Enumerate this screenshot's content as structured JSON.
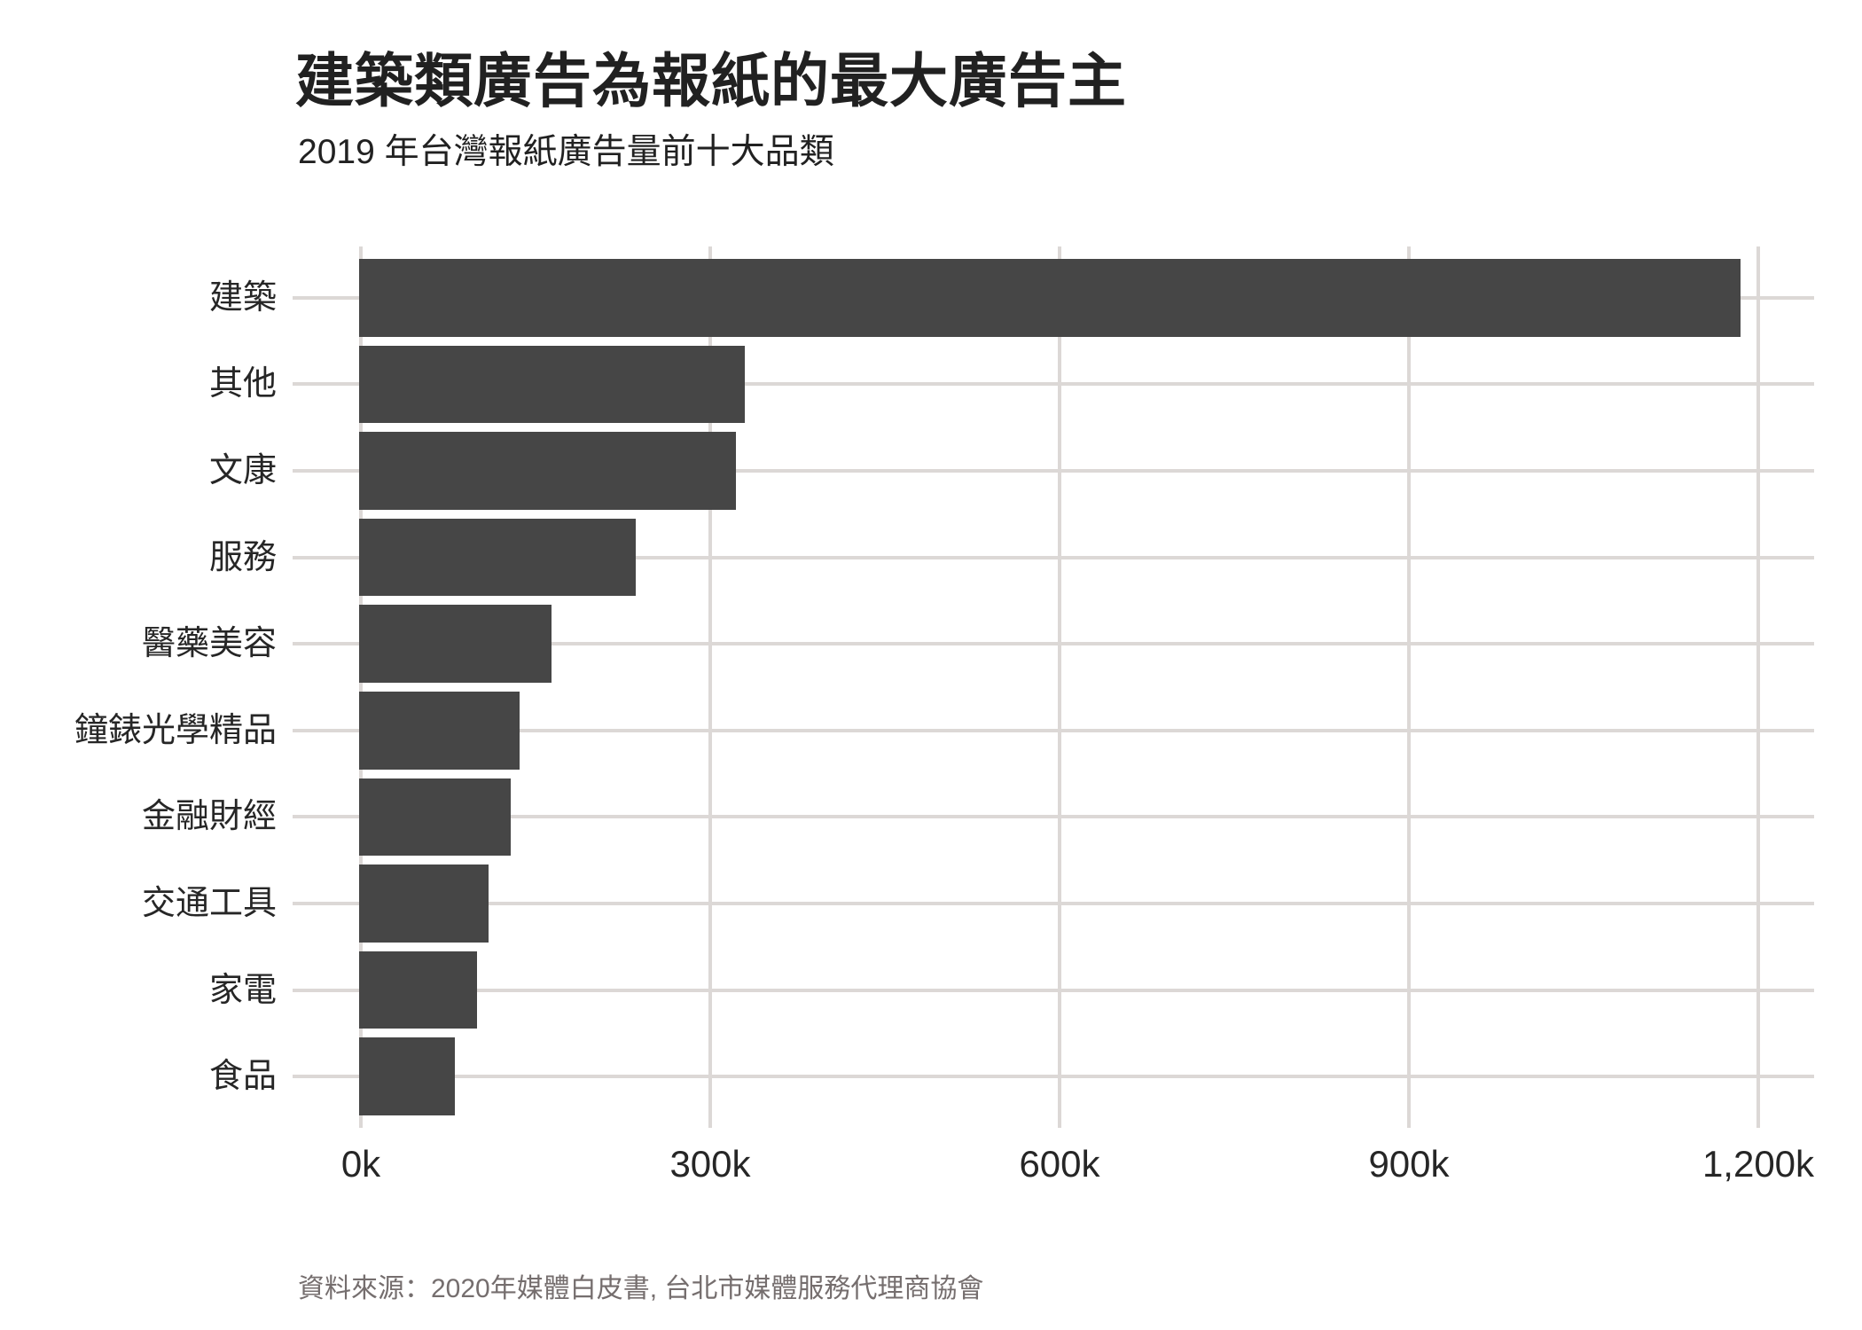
{
  "header": {
    "title": "建築類廣告為報紙的最大廣告主",
    "subtitle": "2019 年台灣報紙廣告量前十大品類"
  },
  "chart_data": {
    "type": "bar",
    "orientation": "horizontal",
    "title": "建築類廣告為報紙的最大廣告主",
    "subtitle": "2019 年台灣報紙廣告量前十大品類",
    "categories": [
      "建築",
      "其他",
      "文康",
      "服務",
      "醫藥美容",
      "鐘錶光學精品",
      "金融財經",
      "交通工具",
      "家電",
      "食品"
    ],
    "values": [
      1185000,
      330000,
      322000,
      236000,
      164000,
      136000,
      129000,
      110000,
      100000,
      81000
    ],
    "xlim": [
      0,
      1200000
    ],
    "x_ticks": [
      {
        "value": 0,
        "label": "0k"
      },
      {
        "value": 300000,
        "label": "300k"
      },
      {
        "value": 600000,
        "label": "600k"
      },
      {
        "value": 900000,
        "label": "900k"
      },
      {
        "value": 1200000,
        "label": "1,200k"
      }
    ],
    "grid": true,
    "legend": "none",
    "bar_color": "#464646",
    "grid_color": "#DCD8D6",
    "text_color": "#262626"
  },
  "source": {
    "label": "資料來源：2020年媒體白皮書, 台北市媒體服務代理商協會"
  }
}
